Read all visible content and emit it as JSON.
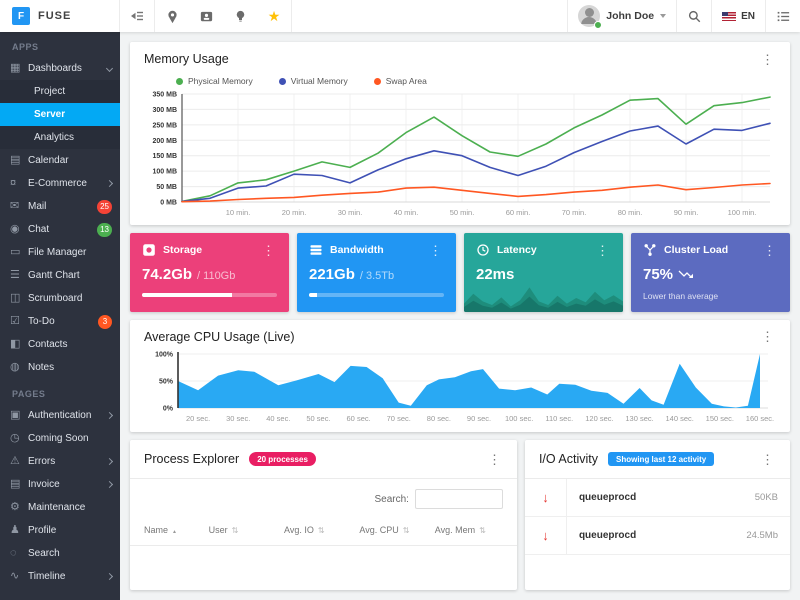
{
  "colors": {
    "accent": "#03a9f4",
    "sidebar_bg": "#2d323e",
    "star": "#ffc107",
    "badge_red": "#f44336",
    "badge_green": "#4caf50",
    "badge_orange": "#ff5722"
  },
  "header": {
    "logo_letter": "F",
    "brand": "FUSE",
    "user_name": "John Doe",
    "language": "EN"
  },
  "sidebar": {
    "sections": [
      {
        "label": "APPS",
        "items": [
          {
            "name": "dashboards",
            "label": "Dashboards",
            "glyph": "▦",
            "chevron": "down"
          },
          {
            "name": "project",
            "label": "Project",
            "child": true
          },
          {
            "name": "server",
            "label": "Server",
            "child": true,
            "active": true
          },
          {
            "name": "analytics",
            "label": "Analytics",
            "child": true
          },
          {
            "name": "calendar",
            "label": "Calendar",
            "glyph": "▤"
          },
          {
            "name": "e-commerce",
            "label": "E-Commerce",
            "glyph": "¤",
            "chevron": "right"
          },
          {
            "name": "mail",
            "label": "Mail",
            "glyph": "✉",
            "badge": {
              "text": "25",
              "color": "#f44336"
            }
          },
          {
            "name": "chat",
            "label": "Chat",
            "glyph": "◉",
            "badge": {
              "text": "13",
              "color": "#4caf50"
            }
          },
          {
            "name": "file-manager",
            "label": "File Manager",
            "glyph": "▭"
          },
          {
            "name": "gantt-chart",
            "label": "Gantt Chart",
            "glyph": "☰"
          },
          {
            "name": "scrumboard",
            "label": "Scrumboard",
            "glyph": "◫"
          },
          {
            "name": "to-do",
            "label": "To-Do",
            "glyph": "☑",
            "badge": {
              "text": "3",
              "color": "#ff5722"
            }
          },
          {
            "name": "contacts",
            "label": "Contacts",
            "glyph": "◧"
          },
          {
            "name": "notes",
            "label": "Notes",
            "glyph": "◍"
          }
        ]
      },
      {
        "label": "PAGES",
        "items": [
          {
            "name": "authentication",
            "label": "Authentication",
            "glyph": "▣",
            "chevron": "right"
          },
          {
            "name": "coming-soon",
            "label": "Coming Soon",
            "glyph": "◷"
          },
          {
            "name": "errors",
            "label": "Errors",
            "glyph": "⚠",
            "chevron": "right"
          },
          {
            "name": "invoice",
            "label": "Invoice",
            "glyph": "▤",
            "chevron": "right"
          },
          {
            "name": "maintenance",
            "label": "Maintenance",
            "glyph": "⚙"
          },
          {
            "name": "profile",
            "label": "Profile",
            "glyph": "♟"
          },
          {
            "name": "search",
            "label": "Search",
            "glyph": "◌"
          },
          {
            "name": "timeline",
            "label": "Timeline",
            "glyph": "∿",
            "chevron": "right"
          }
        ]
      }
    ]
  },
  "stats": [
    {
      "label": "Storage",
      "value": "74.2Gb",
      "total": "/ 110Gb",
      "color": "#ec407a",
      "progress": 67
    },
    {
      "label": "Bandwidth",
      "value": "221Gb",
      "total": "/ 3.5Tb",
      "color": "#2196f3",
      "progress": 6
    },
    {
      "label": "Latency",
      "value": "22ms",
      "color": "#26a69a"
    },
    {
      "label": "Cluster Load",
      "value": "75%",
      "subtitle": "Lower than average",
      "color": "#5c6bc0"
    }
  ],
  "process_explorer": {
    "title": "Process Explorer",
    "badge": "20 processes",
    "badge_color": "#e91e63",
    "search_label": "Search:",
    "search_value": "",
    "columns": [
      {
        "label": "Name",
        "sort": "asc",
        "width": 18
      },
      {
        "label": "User",
        "sort": "both",
        "width": 21
      },
      {
        "label": "Avg. IO",
        "sort": "both",
        "width": 21
      },
      {
        "label": "Avg. CPU",
        "sort": "both",
        "width": 21
      },
      {
        "label": "Avg. Mem",
        "sort": "both",
        "width": 19
      }
    ]
  },
  "io_activity": {
    "title": "I/O Activity",
    "badge": "Showing last 12 activity",
    "badge_color": "#2196f3",
    "rows": [
      {
        "direction": "down",
        "name": "queueprocd",
        "value": "50KB"
      },
      {
        "direction": "down",
        "name": "queueprocd",
        "value": "24.5Mb"
      }
    ]
  },
  "chart_data": [
    {
      "id": "memory",
      "type": "line",
      "title": "Memory Usage",
      "xlabel": "minutes",
      "ylabel": "MB",
      "xlim": [
        0,
        105
      ],
      "ylim": [
        0,
        350
      ],
      "grid": true,
      "legend_position": "top-left",
      "x": [
        0,
        5,
        10,
        15,
        20,
        25,
        30,
        35,
        40,
        45,
        50,
        55,
        60,
        65,
        70,
        75,
        80,
        85,
        90,
        95,
        100,
        105
      ],
      "x_ticks": [
        "10 min.",
        "20 min.",
        "30 min.",
        "40 min.",
        "50 min.",
        "60 min.",
        "70 min.",
        "80 min.",
        "90 min.",
        "100 min."
      ],
      "y_ticks": [
        "0 MB",
        "50 MB",
        "100 MB",
        "150 MB",
        "200 MB",
        "250 MB",
        "300 MB",
        "350 MB"
      ],
      "series": [
        {
          "name": "Physical Memory",
          "color": "#4caf50",
          "values": [
            2,
            20,
            62,
            72,
            100,
            130,
            112,
            158,
            225,
            275,
            215,
            162,
            148,
            188,
            240,
            282,
            330,
            335,
            252,
            312,
            322,
            340
          ]
        },
        {
          "name": "Virtual Memory",
          "color": "#3f51b5",
          "values": [
            2,
            12,
            45,
            52,
            90,
            86,
            62,
            104,
            140,
            166,
            150,
            112,
            86,
            116,
            160,
            196,
            230,
            246,
            188,
            236,
            232,
            255
          ]
        },
        {
          "name": "Swap Area",
          "color": "#ff5722",
          "values": [
            1,
            3,
            8,
            12,
            15,
            22,
            28,
            32,
            45,
            48,
            38,
            28,
            18,
            24,
            32,
            38,
            48,
            55,
            40,
            47,
            55,
            60
          ]
        }
      ]
    },
    {
      "id": "cpu",
      "type": "area",
      "title": "Average CPU Usage (Live)",
      "color": "#29a9f3",
      "xlabel": "seconds",
      "ylabel": "%",
      "xlim": [
        15,
        162
      ],
      "ylim": [
        0,
        100
      ],
      "grid": true,
      "x": [
        15,
        20,
        25,
        30,
        34,
        40,
        45,
        50,
        54,
        58,
        62,
        66,
        70,
        73,
        77,
        80,
        84,
        88,
        91,
        95,
        99,
        103,
        107,
        110,
        114,
        118,
        122,
        126,
        130,
        133,
        136,
        140,
        144,
        148,
        151,
        154,
        157,
        160
      ],
      "values": [
        50,
        33,
        60,
        70,
        67,
        42,
        52,
        63,
        48,
        78,
        76,
        55,
        10,
        4,
        42,
        53,
        57,
        68,
        72,
        36,
        33,
        38,
        25,
        45,
        43,
        32,
        28,
        8,
        37,
        14,
        6,
        82,
        38,
        8,
        3,
        1,
        4,
        100
      ],
      "x_ticks": [
        "20 sec.",
        "30 sec.",
        "40 sec.",
        "50 sec.",
        "60 sec.",
        "70 sec.",
        "80 sec.",
        "90 sec.",
        "100 sec.",
        "110 sec.",
        "120 sec.",
        "130 sec.",
        "140 sec.",
        "150 sec.",
        "160 sec."
      ],
      "y_ticks": [
        "0%",
        "50%",
        "100%"
      ]
    },
    {
      "id": "latency-spark",
      "type": "area",
      "title": "Latency sparkline",
      "ylim": [
        0,
        100
      ],
      "color_back": "#1e8d7c",
      "color_front": "#17776a",
      "values": [
        30,
        65,
        38,
        25,
        52,
        20,
        42,
        88,
        38,
        25,
        58,
        30,
        50,
        35,
        72,
        42,
        60,
        38
      ],
      "values2": [
        18,
        40,
        22,
        15,
        34,
        12,
        26,
        55,
        24,
        15,
        36,
        18,
        30,
        22,
        45,
        26,
        38,
        22
      ]
    }
  ]
}
